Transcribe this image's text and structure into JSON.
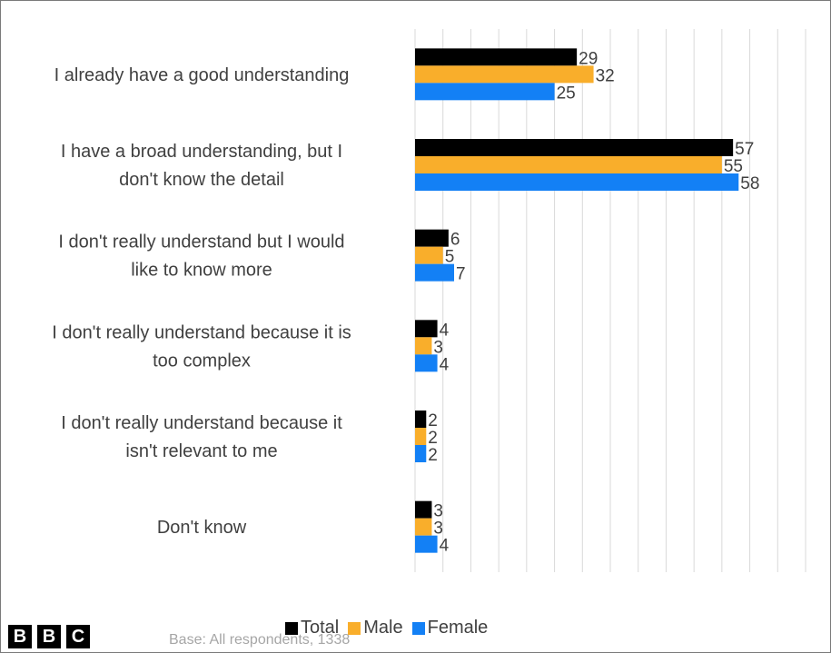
{
  "chart_data": {
    "type": "bar",
    "orientation": "horizontal",
    "categories": [
      [
        "I already have a good understanding"
      ],
      [
        "I have a broad understanding, but I",
        "don't know the detail"
      ],
      [
        "I don't really understand but I would",
        "like to know more"
      ],
      [
        "I don't really understand because it is",
        "too complex"
      ],
      [
        "I don't really understand because it",
        "isn't relevant to me"
      ],
      [
        "Don't know"
      ]
    ],
    "series": [
      {
        "name": "Total",
        "values": [
          29,
          57,
          6,
          4,
          2,
          3
        ],
        "color": "#000000"
      },
      {
        "name": "Male",
        "values": [
          32,
          55,
          5,
          3,
          2,
          3
        ],
        "color": "#f9ae2b"
      },
      {
        "name": "Female",
        "values": [
          25,
          58,
          7,
          4,
          2,
          4
        ],
        "color": "#1380f5"
      }
    ],
    "xlim": [
      0,
      70
    ],
    "grid": true,
    "legend": "bottom"
  },
  "footnote": "Base: All respondents, 1338",
  "logo": [
    "B",
    "B",
    "C"
  ]
}
